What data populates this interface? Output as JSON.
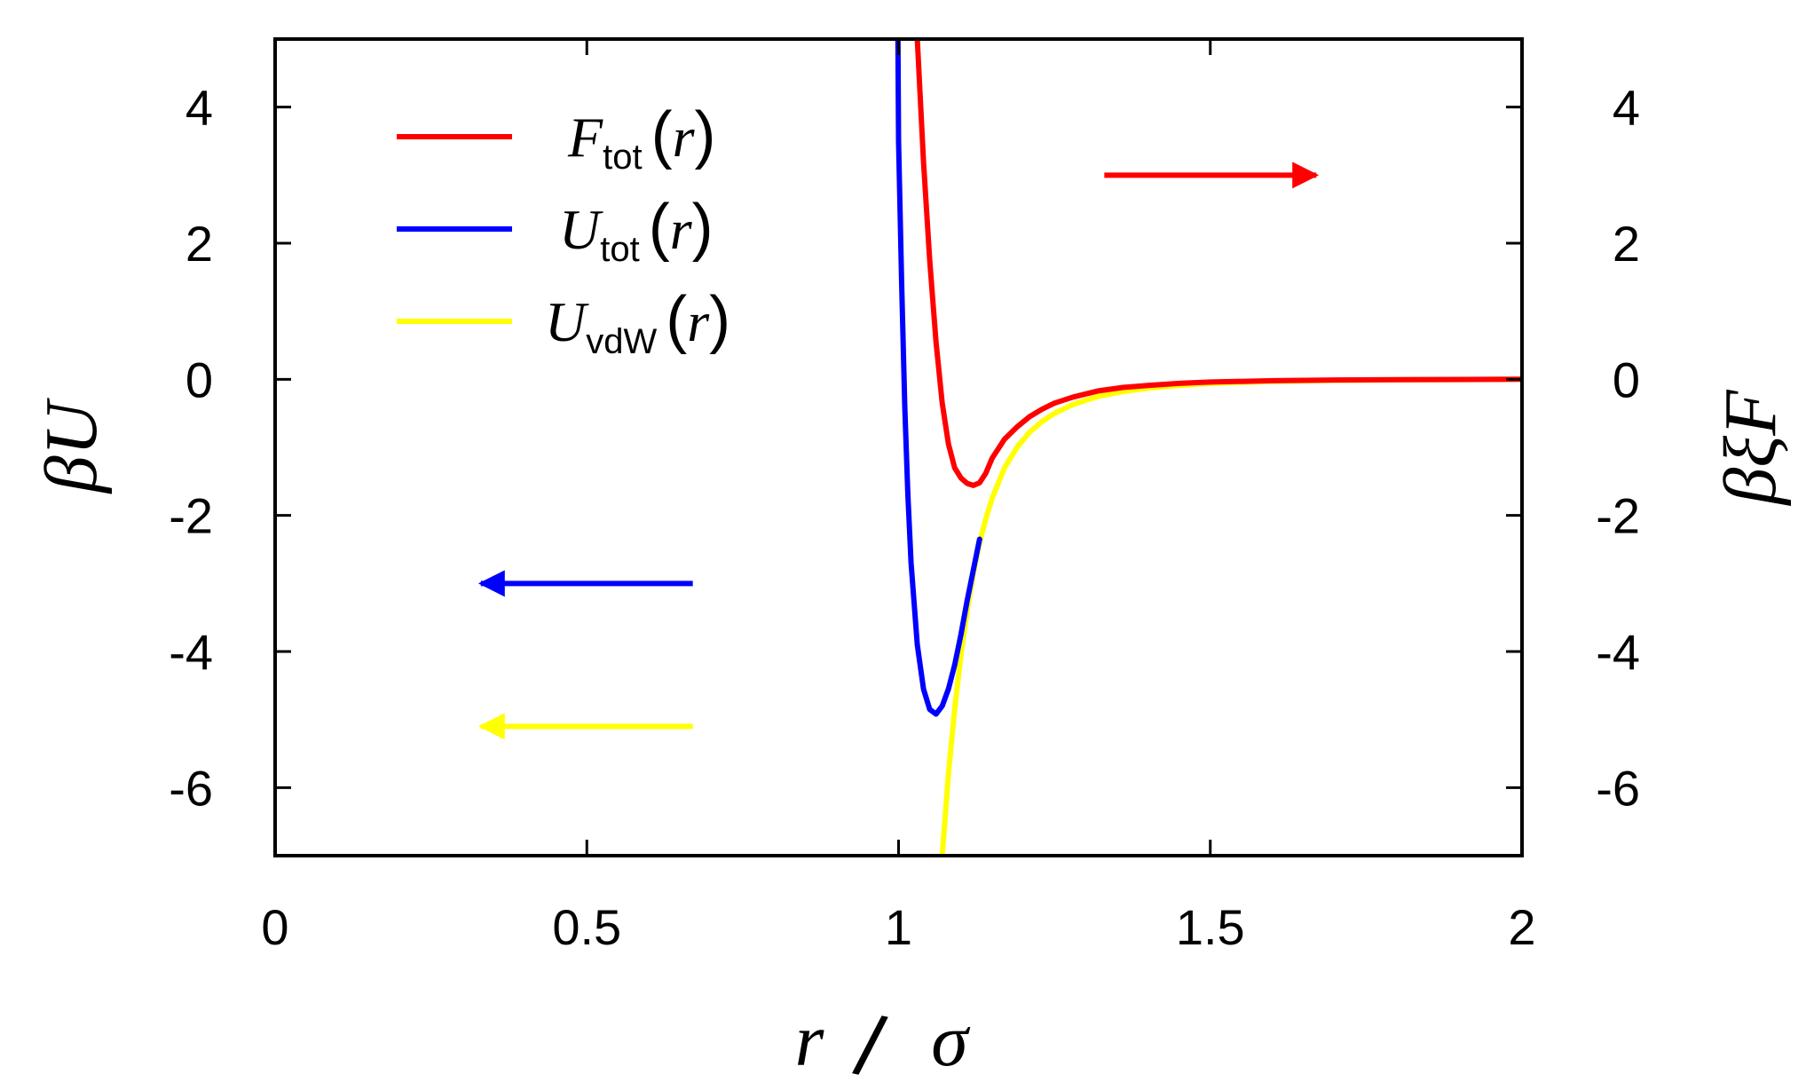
{
  "chart_data": {
    "type": "line",
    "title": "",
    "xlabel": {
      "var": "r",
      "slash": "/",
      "unit": "σ"
    },
    "ylabel_left": "βU",
    "ylabel_right": "βξF",
    "xlim": [
      0,
      2
    ],
    "ylim": [
      -7,
      5
    ],
    "x_ticks": [
      0,
      0.5,
      1,
      1.5,
      2
    ],
    "x_tick_labels": [
      "0",
      "0.5",
      "1",
      "1.5",
      "2"
    ],
    "y_ticks": [
      4,
      2,
      0,
      -2,
      -4,
      -6
    ],
    "y_tick_labels": [
      "4",
      "2",
      "0",
      "-2",
      "-4",
      "-6"
    ],
    "grid": false,
    "legend_position": "top-left",
    "series": [
      {
        "name": "F_tot(r)",
        "label": {
          "main": "F",
          "sub": "tot",
          "open": "(",
          "var": "r",
          "close": ")"
        },
        "color": "#ff0000",
        "axis": "right",
        "x": [
          1.03,
          1.04,
          1.05,
          1.06,
          1.07,
          1.08,
          1.09,
          1.1,
          1.11,
          1.12,
          1.13,
          1.14,
          1.15,
          1.17,
          1.19,
          1.21,
          1.23,
          1.25,
          1.28,
          1.32,
          1.36,
          1.4,
          1.45,
          1.5,
          1.6,
          1.7,
          1.8,
          2.0
        ],
        "y": [
          5.0,
          3.2,
          1.75,
          0.55,
          -0.35,
          -0.95,
          -1.3,
          -1.45,
          -1.53,
          -1.56,
          -1.52,
          -1.38,
          -1.16,
          -0.88,
          -0.7,
          -0.55,
          -0.44,
          -0.35,
          -0.26,
          -0.17,
          -0.12,
          -0.09,
          -0.06,
          -0.04,
          -0.02,
          -0.01,
          -0.005,
          0
        ]
      },
      {
        "name": "U_tot(r)",
        "label": {
          "main": "U",
          "sub": "tot",
          "open": "(",
          "var": "r",
          "close": ")"
        },
        "color": "#0000ff",
        "axis": "left",
        "x": [
          0.999,
          1.0,
          1.005,
          1.01,
          1.015,
          1.02,
          1.03,
          1.04,
          1.05,
          1.06,
          1.07,
          1.08,
          1.09,
          1.1,
          1.11,
          1.12,
          1.13
        ],
        "y": [
          5.0,
          3.5,
          1.4,
          -0.4,
          -1.7,
          -2.7,
          -3.9,
          -4.55,
          -4.85,
          -4.92,
          -4.8,
          -4.55,
          -4.2,
          -3.75,
          -3.25,
          -2.8,
          -2.35
        ]
      },
      {
        "name": "U_vdW(r)",
        "label": {
          "main": "U",
          "sub": "vdW",
          "open": "(",
          "var": "r",
          "close": ")"
        },
        "color": "#ffff00",
        "axis": "left",
        "x": [
          1.07,
          1.08,
          1.09,
          1.1,
          1.11,
          1.12,
          1.13,
          1.14,
          1.15,
          1.17,
          1.19,
          1.21,
          1.23,
          1.25,
          1.28,
          1.32,
          1.36,
          1.4,
          1.45,
          1.5,
          1.6,
          1.7,
          1.8,
          2.0
        ],
        "y": [
          -7.0,
          -5.8,
          -4.85,
          -4.05,
          -3.4,
          -2.85,
          -2.4,
          -2.05,
          -1.75,
          -1.3,
          -1.0,
          -0.78,
          -0.62,
          -0.5,
          -0.37,
          -0.25,
          -0.18,
          -0.13,
          -0.09,
          -0.06,
          -0.03,
          -0.015,
          -0.008,
          0
        ]
      }
    ],
    "annotations": [
      {
        "type": "arrow",
        "color": "#ff0000",
        "points_to": "right axis",
        "from": [
          1.33,
          3.0
        ],
        "to": [
          1.67,
          3.0
        ]
      },
      {
        "type": "arrow",
        "color": "#0000ff",
        "points_to": "left axis",
        "from": [
          0.67,
          -3.0
        ],
        "to": [
          0.33,
          -3.0
        ]
      },
      {
        "type": "arrow",
        "color": "#ffff00",
        "points_to": "left axis",
        "from": [
          0.67,
          -5.1
        ],
        "to": [
          0.33,
          -5.1
        ]
      }
    ]
  }
}
